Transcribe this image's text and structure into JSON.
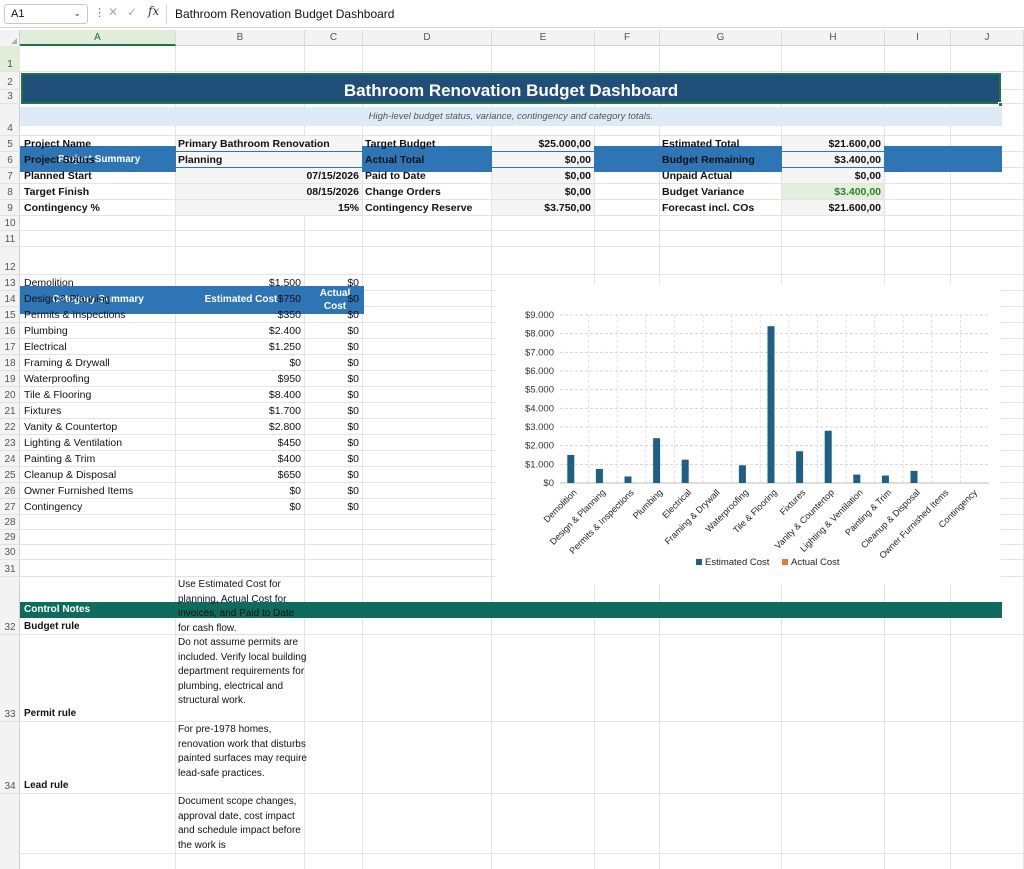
{
  "formula_bar": {
    "name_box": "A1",
    "formula": "Bathroom Renovation Budget Dashboard"
  },
  "columns": [
    "A",
    "B",
    "C",
    "D",
    "E",
    "F",
    "G",
    "H",
    "I",
    "J"
  ],
  "rows": [
    "1",
    "2",
    "3",
    "4",
    "5",
    "6",
    "7",
    "8",
    "9",
    "10",
    "11",
    "12",
    "13",
    "14",
    "15",
    "16",
    "17",
    "18",
    "19",
    "20",
    "21",
    "22",
    "23",
    "24",
    "25",
    "26",
    "27",
    "28",
    "29",
    "30",
    "31",
    "32",
    "33",
    "34"
  ],
  "title": "Bathroom Renovation Budget Dashboard",
  "subtitle": "High-level budget status, variance, contingency and category totals.",
  "project_summary": {
    "header": "Project Summary",
    "left": [
      {
        "label": "Project Name",
        "value": "Primary Bathroom Renovation"
      },
      {
        "label": "Project Status",
        "value": "Planning"
      },
      {
        "label": "Planned Start",
        "value": "07/15/2026"
      },
      {
        "label": "Target Finish",
        "value": "08/15/2026"
      },
      {
        "label": "Contingency %",
        "value": "15%"
      }
    ],
    "middle": [
      {
        "label": "Target Budget",
        "value": "$25.000,00"
      },
      {
        "label": "Actual Total",
        "value": "$0,00"
      },
      {
        "label": "Paid to Date",
        "value": "$0,00"
      },
      {
        "label": "Change Orders",
        "value": "$0,00"
      },
      {
        "label": "Contingency Reserve",
        "value": "$3.750,00"
      }
    ],
    "right": [
      {
        "label": "Estimated Total",
        "value": "$21.600,00"
      },
      {
        "label": "Budget Remaining",
        "value": "$3.400,00"
      },
      {
        "label": "Unpaid Actual",
        "value": "$0,00"
      },
      {
        "label": "Budget Variance",
        "value": "$3.400,00"
      },
      {
        "label": "Forecast incl. COs",
        "value": "$21.600,00"
      }
    ]
  },
  "category_summary": {
    "headers": [
      "Category Summary",
      "Estimated Cost",
      "Actual",
      "Cost"
    ],
    "rows": [
      {
        "name": "Demolition",
        "est": "$1.500",
        "act": "$0"
      },
      {
        "name": "Design & Planning",
        "est": "$750",
        "act": "$0"
      },
      {
        "name": "Permits & Inspections",
        "est": "$350",
        "act": "$0"
      },
      {
        "name": "Plumbing",
        "est": "$2.400",
        "act": "$0"
      },
      {
        "name": "Electrical",
        "est": "$1.250",
        "act": "$0"
      },
      {
        "name": "Framing & Drywall",
        "est": "$0",
        "act": "$0"
      },
      {
        "name": "Waterproofing",
        "est": "$950",
        "act": "$0"
      },
      {
        "name": "Tile & Flooring",
        "est": "$8.400",
        "act": "$0"
      },
      {
        "name": "Fixtures",
        "est": "$1.700",
        "act": "$0"
      },
      {
        "name": "Vanity & Countertop",
        "est": "$2.800",
        "act": "$0"
      },
      {
        "name": "Lighting & Ventilation",
        "est": "$450",
        "act": "$0"
      },
      {
        "name": "Painting & Trim",
        "est": "$400",
        "act": "$0"
      },
      {
        "name": "Cleanup & Disposal",
        "est": "$650",
        "act": "$0"
      },
      {
        "name": "Owner Furnished Items",
        "est": "$0",
        "act": "$0"
      },
      {
        "name": "Contingency",
        "est": "$0",
        "act": "$0"
      }
    ]
  },
  "chart_data": {
    "type": "bar",
    "categories": [
      "Demolition",
      "Design & Planning",
      "Permits & Inspections",
      "Plumbing",
      "Electrical",
      "Framing & Drywall",
      "Waterproofing",
      "Tile & Flooring",
      "Fixtures",
      "Vanity & Countertop",
      "Lighting & Ventilation",
      "Painting & Trim",
      "Cleanup & Disposal",
      "Owner Furnished Items",
      "Contingency"
    ],
    "series": [
      {
        "name": "Estimated Cost",
        "color": "#1f5f86",
        "values": [
          1500,
          750,
          350,
          2400,
          1250,
          0,
          950,
          8400,
          1700,
          2800,
          450,
          400,
          650,
          0,
          0
        ]
      },
      {
        "name": "Actual Cost",
        "color": "#e07b39",
        "values": [
          0,
          0,
          0,
          0,
          0,
          0,
          0,
          0,
          0,
          0,
          0,
          0,
          0,
          0,
          0
        ]
      }
    ],
    "ylim": [
      0,
      9000
    ],
    "yticks": [
      "$0",
      "$1.000",
      "$2.000",
      "$3.000",
      "$4.000",
      "$5.000",
      "$6.000",
      "$7.000",
      "$8.000",
      "$9.000"
    ],
    "legend": "bottom",
    "grid": true
  },
  "control_notes": {
    "header": "Control Notes",
    "items": [
      {
        "label": "Budget rule",
        "text": "Use Estimated Cost for planning, Actual Cost for invoices, and Paid to Date for cash flow."
      },
      {
        "label": "Permit rule",
        "text": "Do not assume permits are included. Verify local building department requirements for plumbing, electrical and structural work."
      },
      {
        "label": "Lead rule",
        "text": "For pre-1978 homes, renovation work that disturbs painted surfaces may require lead-safe practices."
      },
      {
        "label": "",
        "text": "Document scope changes, approval date, cost impact and schedule impact before the work is"
      }
    ]
  },
  "colors": {
    "title_bg": "#1f4e79",
    "header_blue": "#2e75b6",
    "notes_teal": "#0f6b5e",
    "variance_green": "#e2efda"
  }
}
